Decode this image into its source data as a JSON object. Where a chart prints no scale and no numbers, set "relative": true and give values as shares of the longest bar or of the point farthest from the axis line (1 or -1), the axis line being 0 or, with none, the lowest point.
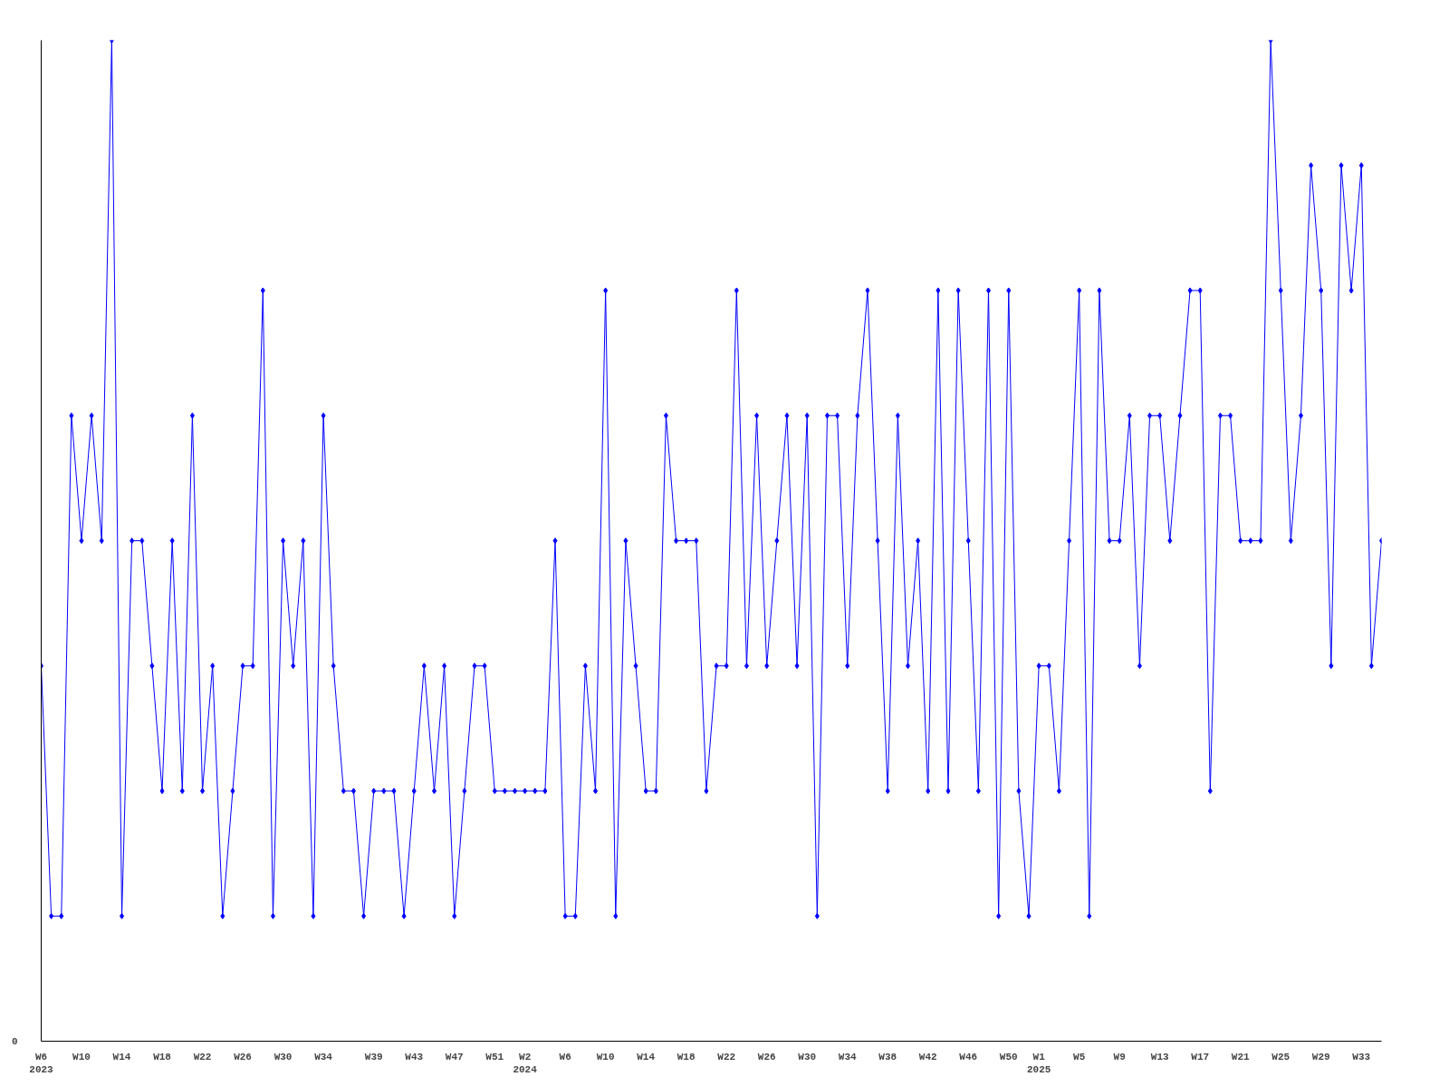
{
  "chart_data": {
    "type": "line",
    "relative": true,
    "color": "#0000ff",
    "marker": "diamond",
    "line_style": "solid",
    "grid": false,
    "annotations": [
      "0"
    ],
    "categories": [
      "W6\n2023",
      null,
      null,
      null,
      "W10",
      null,
      null,
      null,
      "W14",
      null,
      null,
      null,
      "W18",
      null,
      null,
      null,
      "W22",
      null,
      null,
      null,
      "W26",
      null,
      null,
      null,
      "W30",
      null,
      null,
      null,
      "W34",
      null,
      null,
      null,
      null,
      "W39",
      null,
      null,
      null,
      "W43",
      null,
      null,
      null,
      "W47",
      null,
      null,
      null,
      "W51",
      null,
      null,
      "W2\n2024",
      null,
      null,
      null,
      "W6",
      null,
      null,
      null,
      "W10",
      null,
      null,
      null,
      "W14",
      null,
      null,
      null,
      "W18",
      null,
      null,
      null,
      "W22",
      null,
      null,
      null,
      "W26",
      null,
      null,
      null,
      "W30",
      null,
      null,
      null,
      "W34",
      null,
      null,
      null,
      "W38",
      null,
      null,
      null,
      "W42",
      null,
      null,
      null,
      "W46",
      null,
      null,
      null,
      "W50",
      null,
      null,
      "W1\n2025",
      null,
      null,
      null,
      "W5",
      null,
      null,
      null,
      "W9",
      null,
      null,
      null,
      "W13",
      null,
      null,
      null,
      "W17",
      null,
      null,
      null,
      "W21",
      null,
      null,
      null,
      "W25",
      null,
      null,
      null,
      "W29",
      null,
      null,
      null,
      "W33",
      null,
      null
    ],
    "values": [
      0.375,
      0.125,
      0.125,
      0.625,
      0.5,
      0.625,
      0.5,
      1,
      0.125,
      0.5,
      0.5,
      0.375,
      0.25,
      0.5,
      0.25,
      0.625,
      0.25,
      0.375,
      0.125,
      0.25,
      0.375,
      0.375,
      0.75,
      0.125,
      0.5,
      0.375,
      0.5,
      0.125,
      0.625,
      0.375,
      0.25,
      0.25,
      0.125,
      0.25,
      0.25,
      0.25,
      0.125,
      0.25,
      0.375,
      0.25,
      0.375,
      0.125,
      0.25,
      0.375,
      0.375,
      0.25,
      0.25,
      0.25,
      0.25,
      0.25,
      0.25,
      0.5,
      0.125,
      0.125,
      0.375,
      0.25,
      0.75,
      0.125,
      0.5,
      0.375,
      0.25,
      0.25,
      0.625,
      0.5,
      0.5,
      0.5,
      0.25,
      0.375,
      0.375,
      0.75,
      0.375,
      0.625,
      0.375,
      0.5,
      0.625,
      0.375,
      0.625,
      0.125,
      0.625,
      0.625,
      0.375,
      0.625,
      0.75,
      0.5,
      0.25,
      0.625,
      0.375,
      0.5,
      0.25,
      0.75,
      0.25,
      0.75,
      0.5,
      0.25,
      0.75,
      0.125,
      0.75,
      0.25,
      0.125,
      0.375,
      0.375,
      0.25,
      0.5,
      0.75,
      0.125,
      0.75,
      0.5,
      0.5,
      0.625,
      0.375,
      0.625,
      0.625,
      0.5,
      0.625,
      0.75,
      0.75,
      0.25,
      0.625,
      0.625,
      0.5,
      0.5,
      0.5,
      1,
      0.75,
      0.5,
      0.625,
      0.875,
      0.75,
      0.375,
      0.875,
      0.75,
      0.875,
      0.375,
      0.5
    ]
  }
}
